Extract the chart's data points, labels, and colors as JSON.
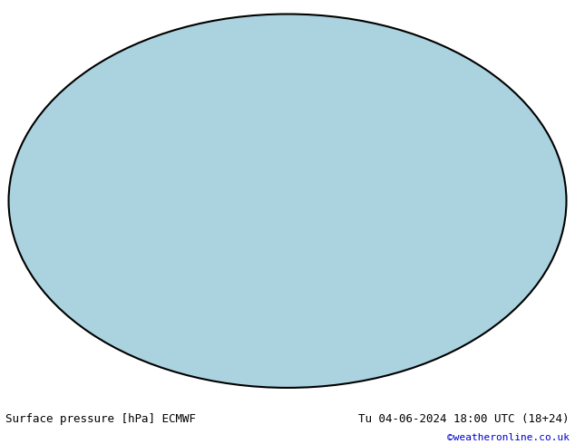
{
  "title_left": "Surface pressure [hPa] ECMWF",
  "title_right": "Tu 04-06-2024 18:00 UTC (18+24)",
  "credit": "©weatheronline.co.uk",
  "bg_color": "#ffffff",
  "ocean_color": "#aad3df",
  "land_color": "#c8e8a0",
  "glacier_color": "#c8c8c8",
  "coastline_color": "#000000",
  "border_color": "#888888",
  "contour_color_low": "#0000ff",
  "contour_color_high": "#ff0000",
  "contour_color_1013": "#000000",
  "label_color_low": "#0000ff",
  "label_color_high": "#ff0000",
  "label_color_1013": "#000000",
  "pressure_base": 1013,
  "pressure_interval": 4,
  "pressure_min": 948,
  "pressure_max": 1052,
  "figsize": [
    6.34,
    4.9
  ],
  "dpi": 100,
  "title_fontsize": 9,
  "credit_fontsize": 8,
  "credit_color": "#0000cd"
}
